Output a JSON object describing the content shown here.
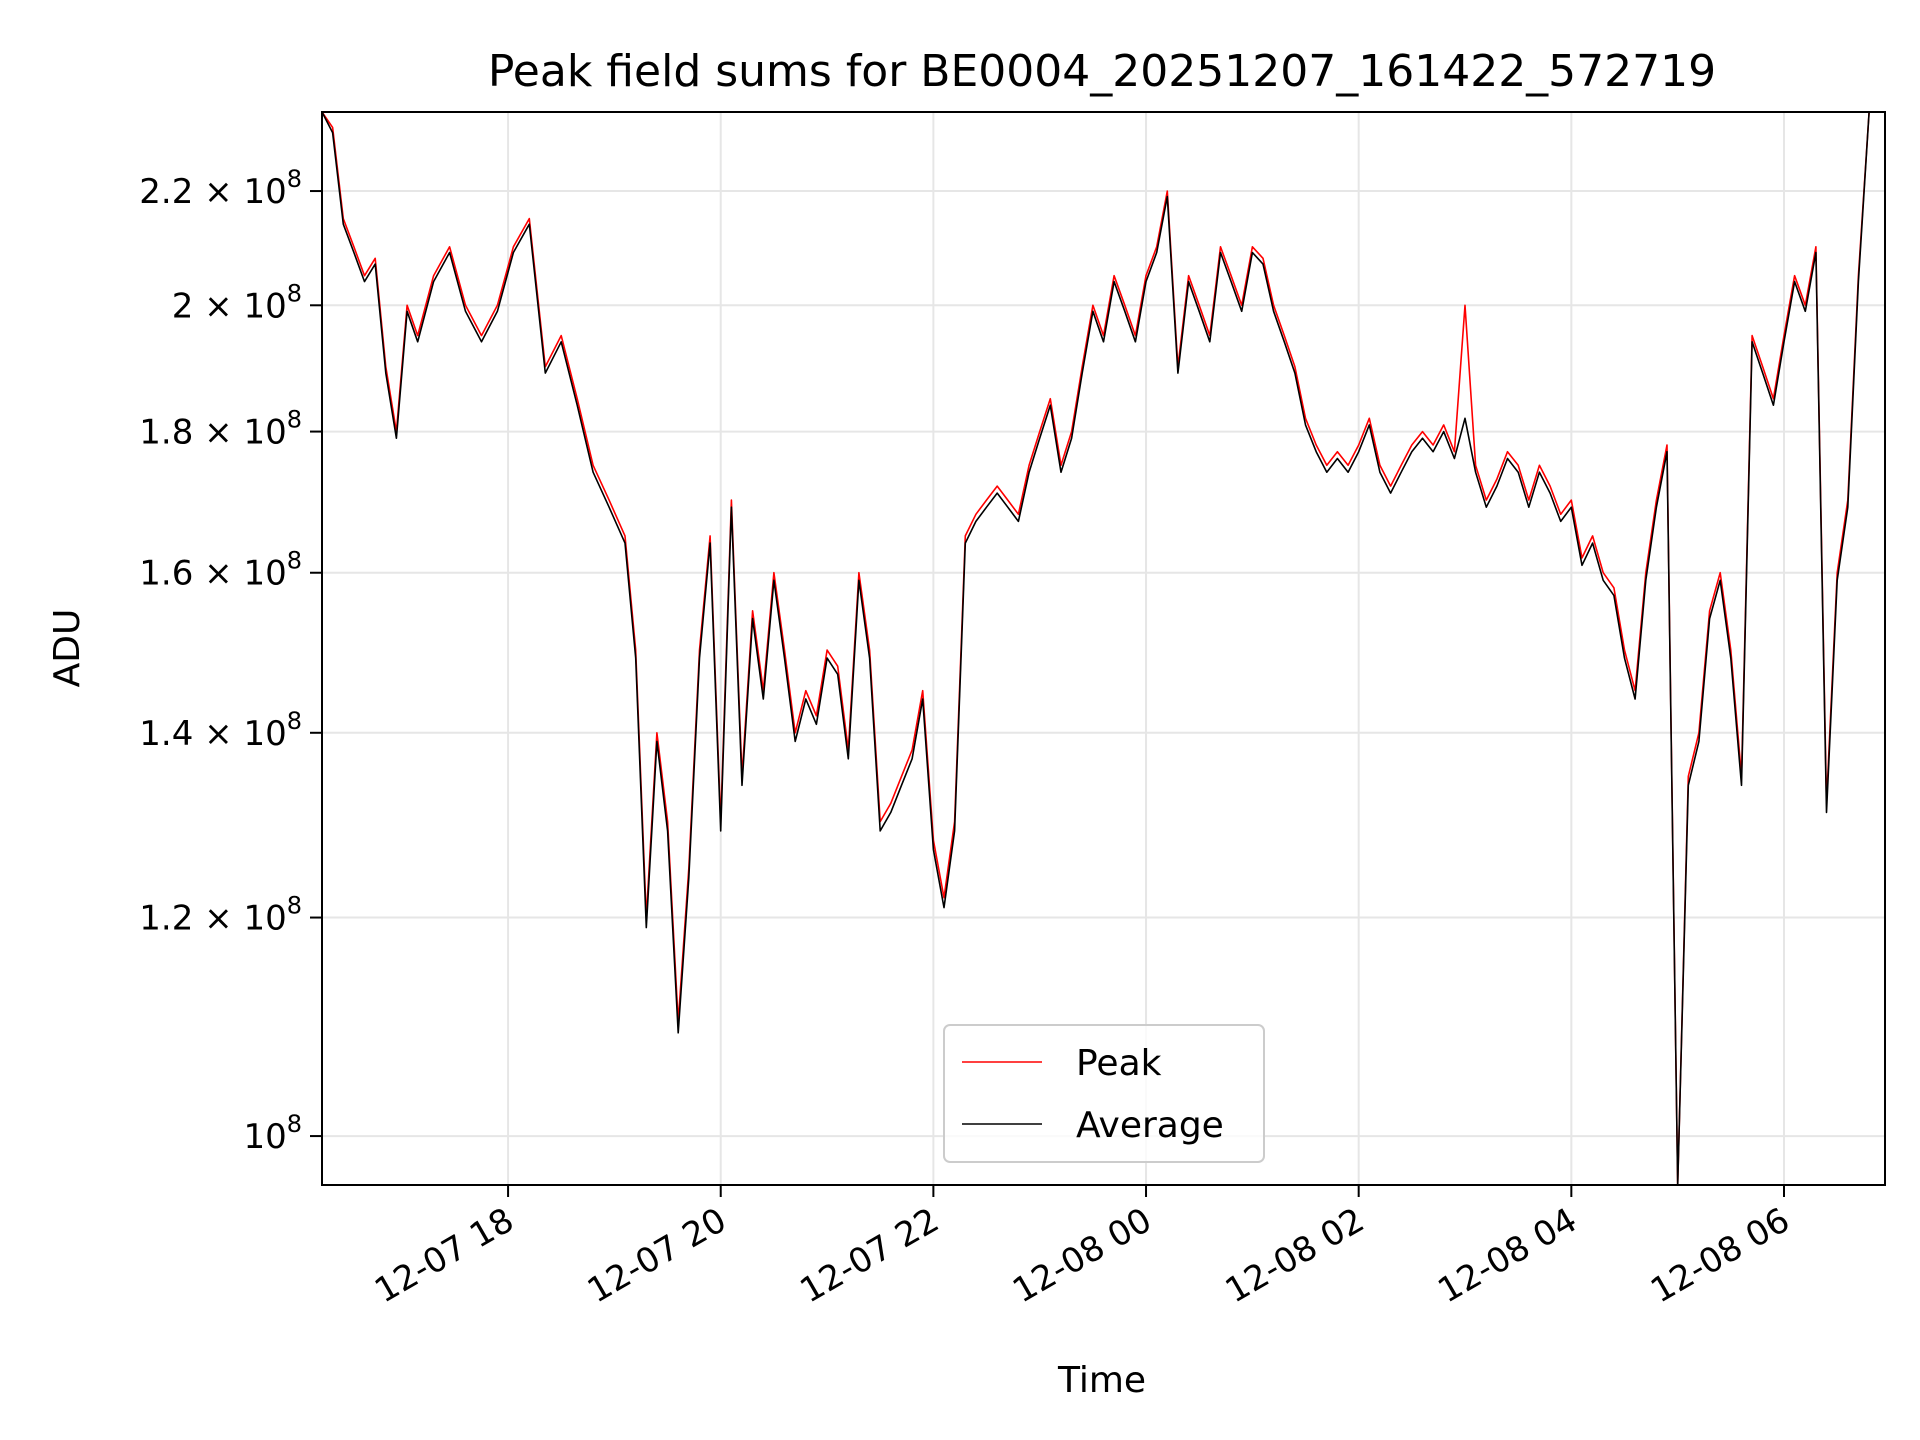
{
  "chart_data": {
    "type": "line",
    "title": "Peak field sums for BE0004_20251207_161422_572719",
    "xlabel": "Time",
    "ylabel": "ADU",
    "yscale": "log",
    "xlim_hours": [
      16.25,
      30.95
    ],
    "ylim": [
      96000000,
      235000000
    ],
    "grid": true,
    "legend_position": "lower center",
    "x_ticks": [
      {
        "hour": 18,
        "label": "12-07 18"
      },
      {
        "hour": 20,
        "label": "12-07 20"
      },
      {
        "hour": 22,
        "label": "12-07 22"
      },
      {
        "hour": 24,
        "label": "12-08 00"
      },
      {
        "hour": 26,
        "label": "12-08 02"
      },
      {
        "hour": 28,
        "label": "12-08 04"
      },
      {
        "hour": 30,
        "label": "12-08 06"
      }
    ],
    "y_ticks": [
      {
        "value": 100000000,
        "base": "10",
        "exp": "8"
      },
      {
        "value": 120000000,
        "base": "1.2 × 10",
        "exp": "8"
      },
      {
        "value": 140000000,
        "base": "1.4 × 10",
        "exp": "8"
      },
      {
        "value": 160000000,
        "base": "1.6 × 10",
        "exp": "8"
      },
      {
        "value": 180000000,
        "base": "1.8 × 10",
        "exp": "8"
      },
      {
        "value": 200000000,
        "base": "2 × 10",
        "exp": "8"
      },
      {
        "value": 220000000,
        "base": "2.2 × 10",
        "exp": "8"
      }
    ],
    "series": [
      {
        "name": "Peak",
        "color": "#ff0000",
        "x_hours": [
          16.25,
          16.35,
          16.45,
          16.55,
          16.65,
          16.75,
          16.85,
          16.95,
          17.05,
          17.15,
          17.3,
          17.45,
          17.6,
          17.75,
          17.9,
          18.05,
          18.2,
          18.35,
          18.5,
          18.65,
          18.8,
          18.95,
          19.1,
          19.2,
          19.3,
          19.4,
          19.5,
          19.6,
          19.7,
          19.8,
          19.9,
          20.0,
          20.1,
          20.2,
          20.3,
          20.4,
          20.5,
          20.6,
          20.7,
          20.8,
          20.9,
          21.0,
          21.1,
          21.2,
          21.3,
          21.4,
          21.5,
          21.6,
          21.7,
          21.8,
          21.9,
          22.0,
          22.1,
          22.2,
          22.3,
          22.4,
          22.5,
          22.6,
          22.7,
          22.8,
          22.9,
          23.0,
          23.1,
          23.2,
          23.3,
          23.4,
          23.5,
          23.6,
          23.7,
          23.8,
          23.9,
          24.0,
          24.1,
          24.2,
          24.3,
          24.4,
          24.5,
          24.6,
          24.7,
          24.8,
          24.9,
          25.0,
          25.1,
          25.2,
          25.3,
          25.4,
          25.5,
          25.6,
          25.7,
          25.8,
          25.9,
          26.0,
          26.1,
          26.2,
          26.3,
          26.4,
          26.5,
          26.6,
          26.7,
          26.8,
          26.9,
          27.0,
          27.1,
          27.2,
          27.3,
          27.4,
          27.5,
          27.6,
          27.7,
          27.8,
          27.9,
          28.0,
          28.1,
          28.2,
          28.3,
          28.4,
          28.5,
          28.6,
          28.7,
          28.8,
          28.9,
          29.0,
          29.1,
          29.2,
          29.3,
          29.4,
          29.5,
          29.6,
          29.7,
          29.8,
          29.9,
          30.0,
          30.1,
          30.2,
          30.3,
          30.4,
          30.5,
          30.6,
          30.7,
          30.8,
          30.95
        ],
        "values": [
          235000000,
          232000000,
          215000000,
          210000000,
          205000000,
          208000000,
          190000000,
          180000000,
          200000000,
          195000000,
          205000000,
          210000000,
          200000000,
          195000000,
          200000000,
          210000000,
          215000000,
          190000000,
          195000000,
          185000000,
          175000000,
          170000000,
          165000000,
          150000000,
          120000000,
          140000000,
          130000000,
          110000000,
          125000000,
          150000000,
          165000000,
          130000000,
          170000000,
          135000000,
          155000000,
          145000000,
          160000000,
          150000000,
          140000000,
          145000000,
          142000000,
          150000000,
          148000000,
          138000000,
          160000000,
          150000000,
          130000000,
          132000000,
          135000000,
          138000000,
          145000000,
          128000000,
          122000000,
          130000000,
          165000000,
          168000000,
          170000000,
          172000000,
          170000000,
          168000000,
          175000000,
          180000000,
          185000000,
          175000000,
          180000000,
          190000000,
          200000000,
          195000000,
          205000000,
          200000000,
          195000000,
          205000000,
          210000000,
          220000000,
          190000000,
          205000000,
          200000000,
          195000000,
          210000000,
          205000000,
          200000000,
          210000000,
          208000000,
          200000000,
          195000000,
          190000000,
          182000000,
          178000000,
          175000000,
          177000000,
          175000000,
          178000000,
          182000000,
          175000000,
          172000000,
          175000000,
          178000000,
          180000000,
          178000000,
          181000000,
          177000000,
          200000000,
          175000000,
          170000000,
          173000000,
          177000000,
          175000000,
          170000000,
          175000000,
          172000000,
          168000000,
          170000000,
          162000000,
          165000000,
          160000000,
          158000000,
          150000000,
          145000000,
          160000000,
          170000000,
          178000000,
          96000000,
          135000000,
          140000000,
          155000000,
          160000000,
          150000000,
          135000000,
          195000000,
          190000000,
          185000000,
          195000000,
          205000000,
          200000000,
          210000000,
          132000000,
          160000000,
          170000000,
          205000000,
          235000000,
          235000000
        ]
      },
      {
        "name": "Average",
        "color": "#000000",
        "x_hours": [
          16.25,
          16.35,
          16.45,
          16.55,
          16.65,
          16.75,
          16.85,
          16.95,
          17.05,
          17.15,
          17.3,
          17.45,
          17.6,
          17.75,
          17.9,
          18.05,
          18.2,
          18.35,
          18.5,
          18.65,
          18.8,
          18.95,
          19.1,
          19.2,
          19.3,
          19.4,
          19.5,
          19.6,
          19.7,
          19.8,
          19.9,
          20.0,
          20.1,
          20.2,
          20.3,
          20.4,
          20.5,
          20.6,
          20.7,
          20.8,
          20.9,
          21.0,
          21.1,
          21.2,
          21.3,
          21.4,
          21.5,
          21.6,
          21.7,
          21.8,
          21.9,
          22.0,
          22.1,
          22.2,
          22.3,
          22.4,
          22.5,
          22.6,
          22.7,
          22.8,
          22.9,
          23.0,
          23.1,
          23.2,
          23.3,
          23.4,
          23.5,
          23.6,
          23.7,
          23.8,
          23.9,
          24.0,
          24.1,
          24.2,
          24.3,
          24.4,
          24.5,
          24.6,
          24.7,
          24.8,
          24.9,
          25.0,
          25.1,
          25.2,
          25.3,
          25.4,
          25.5,
          25.6,
          25.7,
          25.8,
          25.9,
          26.0,
          26.1,
          26.2,
          26.3,
          26.4,
          26.5,
          26.6,
          26.7,
          26.8,
          26.9,
          27.0,
          27.1,
          27.2,
          27.3,
          27.4,
          27.5,
          27.6,
          27.7,
          27.8,
          27.9,
          28.0,
          28.1,
          28.2,
          28.3,
          28.4,
          28.5,
          28.6,
          28.7,
          28.8,
          28.9,
          29.0,
          29.1,
          29.2,
          29.3,
          29.4,
          29.5,
          29.6,
          29.7,
          29.8,
          29.9,
          30.0,
          30.1,
          30.2,
          30.3,
          30.4,
          30.5,
          30.6,
          30.7,
          30.8,
          30.95
        ],
        "values": [
          235000000,
          231000000,
          214000000,
          209000000,
          204000000,
          207000000,
          189000000,
          179000000,
          199000000,
          194000000,
          204000000,
          209000000,
          199000000,
          194000000,
          199000000,
          209000000,
          214000000,
          189000000,
          194000000,
          184000000,
          174000000,
          169000000,
          164000000,
          149000000,
          119000000,
          139000000,
          129000000,
          109000000,
          124000000,
          149000000,
          164000000,
          129000000,
          169000000,
          134000000,
          154000000,
          144000000,
          159000000,
          149000000,
          139000000,
          144000000,
          141000000,
          149000000,
          147000000,
          137000000,
          159000000,
          149000000,
          129000000,
          131000000,
          134000000,
          137000000,
          144000000,
          127000000,
          121000000,
          129000000,
          164000000,
          167000000,
          169000000,
          171000000,
          169000000,
          167000000,
          174000000,
          179000000,
          184000000,
          174000000,
          179000000,
          189000000,
          199000000,
          194000000,
          204000000,
          199000000,
          194000000,
          204000000,
          209000000,
          219000000,
          189000000,
          204000000,
          199000000,
          194000000,
          209000000,
          204000000,
          199000000,
          209000000,
          207000000,
          199000000,
          194000000,
          189000000,
          181000000,
          177000000,
          174000000,
          176000000,
          174000000,
          177000000,
          181000000,
          174000000,
          171000000,
          174000000,
          177000000,
          179000000,
          177000000,
          180000000,
          176000000,
          182000000,
          174000000,
          169000000,
          172000000,
          176000000,
          174000000,
          169000000,
          174000000,
          171000000,
          167000000,
          169000000,
          161000000,
          164000000,
          159000000,
          157000000,
          149000000,
          144000000,
          159000000,
          169000000,
          177000000,
          96000000,
          134000000,
          139000000,
          154000000,
          159000000,
          149000000,
          134000000,
          194000000,
          189000000,
          184000000,
          194000000,
          204000000,
          199000000,
          209000000,
          131000000,
          159000000,
          169000000,
          204000000,
          235000000,
          235000000
        ]
      }
    ]
  }
}
